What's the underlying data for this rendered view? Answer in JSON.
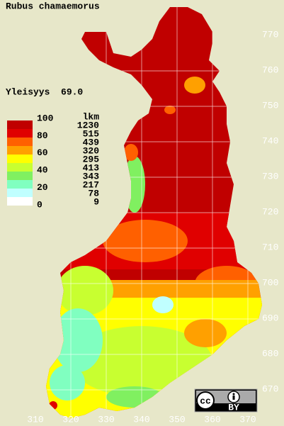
{
  "map": {
    "title": "Rubus chamaemorus",
    "frequency": "Yleisyys  69.0",
    "scale_labels": [
      100,
      80,
      60,
      40,
      20,
      0
    ],
    "count_header": "lkm",
    "classes": [
      {
        "color": "#c00000",
        "count": 1230
      },
      {
        "color": "#e00000",
        "count": 515
      },
      {
        "color": "#ff6000",
        "count": 439
      },
      {
        "color": "#ffa000",
        "count": 320
      },
      {
        "color": "#ffff00",
        "count": 295
      },
      {
        "color": "#c8ff30",
        "count": 413
      },
      {
        "color": "#80f060",
        "count": 343
      },
      {
        "color": "#80ffc0",
        "count": 217
      },
      {
        "color": "#c0ffff",
        "count": 78
      },
      {
        "color": "#ffffff",
        "count": 9
      }
    ],
    "yticks": [
      770,
      760,
      750,
      740,
      730,
      720,
      710,
      700,
      690,
      680,
      670
    ],
    "xticks": [
      310,
      320,
      330,
      340,
      350,
      360,
      370
    ],
    "license": {
      "cc": "cc",
      "by": "BY"
    }
  }
}
